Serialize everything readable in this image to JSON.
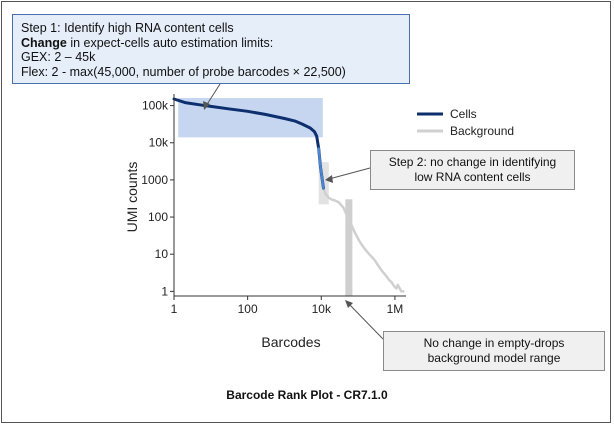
{
  "chart_data": {
    "type": "line",
    "title": "Barcode Rank Plot - CR7.1.0",
    "xlabel": "Barcodes",
    "ylabel": "UMI counts",
    "x_scale": "log",
    "y_scale": "log",
    "xlim": [
      1,
      2000000
    ],
    "ylim": [
      0.75,
      160000
    ],
    "x_ticks": [
      {
        "value": 1,
        "label": "1"
      },
      {
        "value": 100,
        "label": "100"
      },
      {
        "value": 10000,
        "label": "10k"
      },
      {
        "value": 1000000,
        "label": "1M"
      }
    ],
    "y_ticks": [
      {
        "value": 1,
        "label": "1"
      },
      {
        "value": 10,
        "label": "10"
      },
      {
        "value": 100,
        "label": "100"
      },
      {
        "value": 1000,
        "label": "1000"
      },
      {
        "value": 10000,
        "label": "10k"
      },
      {
        "value": 100000,
        "label": "100k"
      }
    ],
    "legend_position": "right",
    "series": [
      {
        "name": "Cells",
        "color": "#0d2f6e",
        "points": [
          [
            1,
            150000
          ],
          [
            2,
            120000
          ],
          [
            5,
            105000
          ],
          [
            10,
            95000
          ],
          [
            30,
            82000
          ],
          [
            100,
            70000
          ],
          [
            300,
            58000
          ],
          [
            1000,
            45000
          ],
          [
            2000,
            38000
          ],
          [
            3000,
            32000
          ],
          [
            5000,
            25000
          ],
          [
            6500,
            20000
          ],
          [
            7500,
            15000
          ],
          [
            8500,
            7000
          ],
          [
            9500,
            2200
          ],
          [
            10500,
            1100
          ],
          [
            11500,
            600
          ]
        ]
      },
      {
        "name": "Background",
        "color": "#d0d0d0",
        "points": [
          [
            11500,
            600
          ],
          [
            13000,
            420
          ],
          [
            16000,
            330
          ],
          [
            20000,
            290
          ],
          [
            23000,
            280
          ],
          [
            30000,
            250
          ],
          [
            40000,
            180
          ],
          [
            55000,
            90
          ],
          [
            80000,
            40
          ],
          [
            110000,
            22
          ],
          [
            150000,
            14
          ],
          [
            200000,
            10
          ],
          [
            280000,
            7
          ],
          [
            350000,
            5
          ],
          [
            450000,
            3.5
          ],
          [
            600000,
            2.5
          ],
          [
            700000,
            2
          ],
          [
            800000,
            1.8
          ],
          [
            900000,
            1.5
          ],
          [
            1000000,
            1.3
          ],
          [
            1100000,
            1.2
          ],
          [
            1200000,
            1.5
          ],
          [
            1350000,
            1.2
          ],
          [
            1500000,
            1
          ],
          [
            1700000,
            1
          ]
        ]
      }
    ],
    "highlights": [
      {
        "kind": "high-rna-estimation",
        "x": [
          1.3,
          11000
        ],
        "y": [
          14000,
          160000
        ],
        "color": "#c6d6f0"
      },
      {
        "kind": "low-rna",
        "x": [
          8500,
          16000
        ],
        "y": [
          220,
          3000
        ],
        "color": "#e2e2e2"
      },
      {
        "kind": "empty-drops",
        "x": [
          45000,
          70000
        ],
        "y": [
          0.75,
          300
        ],
        "color": "#cfcfcf"
      }
    ],
    "annotations": [
      {
        "id": "step1",
        "lines": [
          "Step 1: Identify high RNA content cells",
          {
            "bold": "Change",
            "rest": " in expect-cells auto estimation limits:"
          },
          "GEX: 2 – 45k",
          "Flex:  2 - max(45,000, number of probe barcodes × 22,500)"
        ]
      },
      {
        "id": "step2",
        "text": "Step 2: no change in identifying low RNA content cells"
      },
      {
        "id": "step3",
        "text": "No change in empty-drops background model range"
      }
    ]
  },
  "legend": {
    "cells": "Cells",
    "background": "Background"
  },
  "step1": {
    "line1": "Step 1: Identify high RNA content cells",
    "line2_bold": "Change",
    "line2_rest": " in expect-cells auto estimation limits:",
    "line3": "GEX: 2 – 45k",
    "line4": "Flex:  2 - max(45,000, number of probe barcodes × 22,500)"
  },
  "step2": {
    "line1": "Step 2: no change in identifying",
    "line2": "low RNA content cells"
  },
  "step3": {
    "line1": "No change in empty-drops",
    "line2": "background model range"
  },
  "caption": "Barcode Rank Plot - CR7.1.0"
}
